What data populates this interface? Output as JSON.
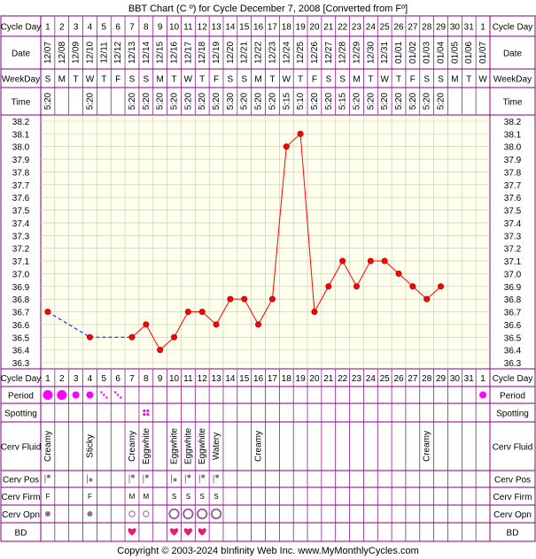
{
  "title": "BBT Chart (C º) for Cycle December 7, 2008  [Converted from Fº]",
  "copyright": "Copyright © 2003-2024 bInfinity Web Inc.     www.MyMonthlyCycles.com",
  "colors": {
    "grid_bg": "#ffffee",
    "purple": "#800080",
    "line": "#ff0000",
    "point": "#ff0000",
    "coverline": "#0000ff",
    "pink": "#ff00ff",
    "fertility": "#996699"
  },
  "row_labels": {
    "cycle_day": "Cycle Day",
    "date": "Date",
    "weekday": "WeekDay",
    "time": "Time",
    "period": "Period",
    "spotting": "Spotting",
    "cerv_fluid": "Cerv Fluid",
    "cerv_pos": "Cerv Pos",
    "cerv_firm": "Cerv Firm",
    "cerv_opn": "Cerv Opn",
    "bd": "BD"
  },
  "cycle_days": [
    "1",
    "2",
    "3",
    "4",
    "5",
    "6",
    "7",
    "8",
    "9",
    "10",
    "11",
    "12",
    "13",
    "14",
    "15",
    "16",
    "17",
    "18",
    "19",
    "20",
    "21",
    "22",
    "23",
    "24",
    "25",
    "26",
    "27",
    "28",
    "29",
    "30",
    "31",
    "1"
  ],
  "dates": [
    "12/07",
    "12/08",
    "12/09",
    "12/10",
    "12/11",
    "12/12",
    "12/13",
    "12/14",
    "12/15",
    "12/16",
    "12/17",
    "12/18",
    "12/19",
    "12/20",
    "12/21",
    "12/22",
    "12/23",
    "12/24",
    "12/25",
    "12/26",
    "12/27",
    "12/28",
    "12/29",
    "12/30",
    "12/31",
    "01/01",
    "01/02",
    "01/03",
    "01/04",
    "01/05",
    "01/06",
    "01/07"
  ],
  "weekdays": [
    "S",
    "M",
    "T",
    "W",
    "T",
    "F",
    "S",
    "S",
    "M",
    "T",
    "W",
    "T",
    "F",
    "S",
    "S",
    "M",
    "T",
    "W",
    "T",
    "F",
    "S",
    "S",
    "M",
    "T",
    "W",
    "T",
    "F",
    "S",
    "S",
    "M",
    "T",
    "W"
  ],
  "times": [
    "5:20",
    "",
    "",
    "5:20",
    "",
    "",
    "5:20",
    "5:20",
    "5:20",
    "5:20",
    "5:20",
    "5:20",
    "5:20",
    "5:30",
    "5:20",
    "5:20",
    "5:20",
    "5:15",
    "5:10",
    "5:20",
    "5:20",
    "5:15",
    "5:20",
    "5:20",
    "5:20",
    "5:20",
    "5:20",
    "5:20",
    "5:20",
    "",
    "",
    ""
  ],
  "y_ticks": [
    "38.2",
    "38.1",
    "38.0",
    "37.9",
    "37.8",
    "37.7",
    "37.6",
    "37.5",
    "37.4",
    "37.3",
    "37.2",
    "37.1",
    "37.0",
    "36.9",
    "36.8",
    "36.7",
    "36.6",
    "36.5",
    "36.4",
    "36.3"
  ],
  "chart_data": {
    "type": "line",
    "title": "BBT Chart (C º) for Cycle December 7, 2008  [Converted from Fº]",
    "xlabel": "Cycle Day",
    "ylabel": "",
    "ylim": [
      36.3,
      38.2
    ],
    "grid": true,
    "x": [
      1,
      4,
      7,
      8,
      9,
      10,
      11,
      12,
      13,
      14,
      15,
      16,
      17,
      18,
      19,
      20,
      21,
      22,
      23,
      24,
      25,
      26,
      27,
      28,
      29
    ],
    "series": [
      {
        "values": [
          36.7,
          36.5,
          36.5,
          36.6,
          36.4,
          36.5,
          36.7,
          36.7,
          36.6,
          36.8,
          36.8,
          36.6,
          36.8,
          38.0,
          38.1,
          36.7,
          36.9,
          37.1,
          36.9,
          37.1,
          37.1,
          37.0,
          36.9,
          36.8,
          36.9
        ]
      }
    ],
    "gaps_bridged": [
      [
        1,
        4
      ],
      [
        4,
        7
      ]
    ]
  },
  "period": [
    "heavy",
    "heavy",
    "medium",
    "medium",
    "light",
    "light",
    "",
    "",
    "",
    "",
    "",
    "",
    "",
    "",
    "",
    "",
    "",
    "",
    "",
    "",
    "",
    "",
    "",
    "",
    "",
    "",
    "",
    "",
    "",
    "",
    "",
    "medium"
  ],
  "spotting": [
    "",
    "",
    "",
    "",
    "",
    "",
    "",
    "spot",
    "",
    "",
    "",
    "",
    "",
    "",
    "",
    "",
    "",
    "",
    "",
    "",
    "",
    "",
    "",
    "",
    "",
    "",
    "",
    "",
    "",
    "",
    "",
    ""
  ],
  "cerv_fluid": [
    "Creamy",
    "",
    "",
    "Sticky",
    "",
    "",
    "Creamy",
    "Eggwhite",
    "",
    "Eggwhite",
    "Eggwhite",
    "Eggwhite",
    "Watery",
    "",
    "",
    "Creamy",
    "",
    "",
    "",
    "",
    "",
    "",
    "",
    "",
    "",
    "",
    "",
    "Creamy",
    "",
    "",
    "",
    ""
  ],
  "cerv_pos": [
    "high",
    "",
    "",
    "low",
    "",
    "",
    "high",
    "high",
    "",
    "low",
    "high",
    "high",
    "high",
    "",
    "",
    "",
    "",
    "",
    "",
    "",
    "",
    "",
    "",
    "",
    "",
    "",
    "",
    "",
    "",
    "",
    "",
    ""
  ],
  "cerv_firm": [
    "F",
    "",
    "",
    "F",
    "",
    "",
    "M",
    "M",
    "",
    "S",
    "S",
    "S",
    "S",
    "",
    "",
    "",
    "",
    "",
    "",
    "",
    "",
    "",
    "",
    "",
    "",
    "",
    "",
    "",
    "",
    "",
    "",
    ""
  ],
  "cerv_opn": [
    "closed",
    "",
    "",
    "closed",
    "",
    "",
    "medium",
    "medium",
    "",
    "open",
    "open",
    "open",
    "open",
    "",
    "",
    "",
    "",
    "",
    "",
    "",
    "",
    "",
    "",
    "",
    "",
    "",
    "",
    "",
    "",
    "",
    "",
    ""
  ],
  "bd": [
    "",
    "",
    "",
    "",
    "",
    "",
    "heart",
    "",
    "",
    "heart",
    "heart",
    "heart",
    "",
    "",
    "",
    "",
    "",
    "",
    "",
    "",
    "",
    "",
    "",
    "",
    "",
    "",
    "",
    "",
    "",
    "",
    "",
    ""
  ]
}
